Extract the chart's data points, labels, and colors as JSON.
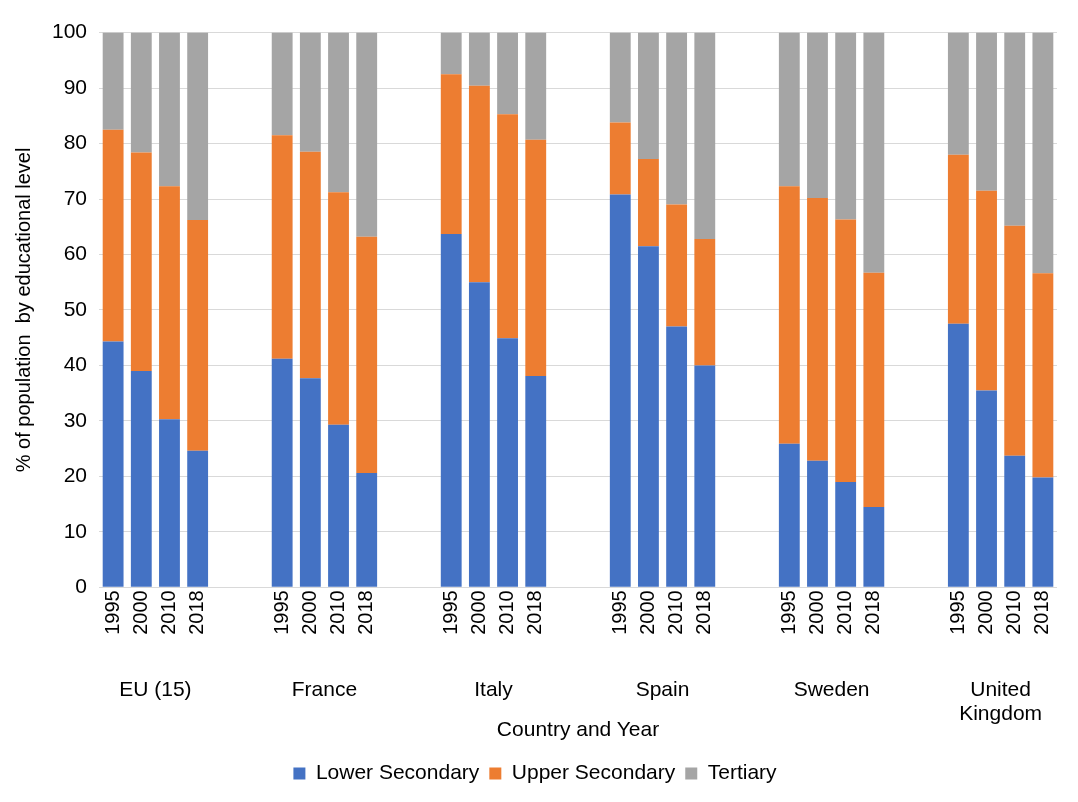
{
  "chart_data": {
    "type": "bar",
    "stacked": true,
    "xlabel": "Country and Year",
    "ylabel": "% of population  by educational level",
    "categories": [
      "1995",
      "2000",
      "2010",
      "2018",
      null,
      null,
      "1995",
      "2000",
      "2010",
      "2018",
      null,
      null,
      "1995",
      "2000",
      "2010",
      "2018",
      null,
      null,
      "1995",
      "2000",
      "2010",
      "2018",
      null,
      null,
      "1995",
      "2000",
      "2010",
      "2018",
      null,
      null,
      "1995",
      "2000",
      "2010",
      "2018"
    ],
    "annotations": [
      "EU (15)",
      "France",
      "Italy",
      "Spain",
      "Sweden",
      "United Kingdom"
    ],
    "series": [
      {
        "name": "Lower Secondary",
        "color": "#4472c4",
        "values": [
          44.3,
          39,
          30.3,
          24.6,
          null,
          null,
          41.2,
          37.7,
          29.3,
          20.6,
          null,
          null,
          63.7,
          55,
          44.9,
          38.1,
          null,
          null,
          70.8,
          61.5,
          47,
          40,
          null,
          null,
          25.9,
          22.8,
          19,
          14.5,
          null,
          null,
          47.5,
          35.5,
          23.7,
          19.8
        ]
      },
      {
        "name": "Upper Secondary",
        "color": "#ed7d31",
        "values": [
          38.2,
          39.4,
          42,
          41.6,
          null,
          null,
          40.3,
          40.8,
          41.9,
          42.6,
          null,
          null,
          28.8,
          35.4,
          40.4,
          42.6,
          null,
          null,
          13,
          15.7,
          22,
          22.8,
          null,
          null,
          46.4,
          47.4,
          47.3,
          42.2,
          null,
          null,
          30.5,
          36,
          41.5,
          36.8
        ]
      },
      {
        "name": "Tertiary",
        "color": "#a5a5a5",
        "values": [
          17.5,
          21.6,
          27.7,
          33.8,
          null,
          null,
          18.5,
          21.5,
          28.8,
          36.8,
          null,
          null,
          7.5,
          9.6,
          14.7,
          19.3,
          null,
          null,
          16.2,
          22.8,
          31,
          37.2,
          null,
          null,
          27.7,
          29.8,
          33.7,
          43.3,
          null,
          null,
          22,
          28.5,
          34.8,
          43.4
        ]
      }
    ],
    "ylim": [
      0,
      100
    ],
    "yticks": [
      0,
      10,
      20,
      30,
      40,
      50,
      60,
      70,
      80,
      90,
      100
    ],
    "grid": "y",
    "legend": "bottom"
  }
}
